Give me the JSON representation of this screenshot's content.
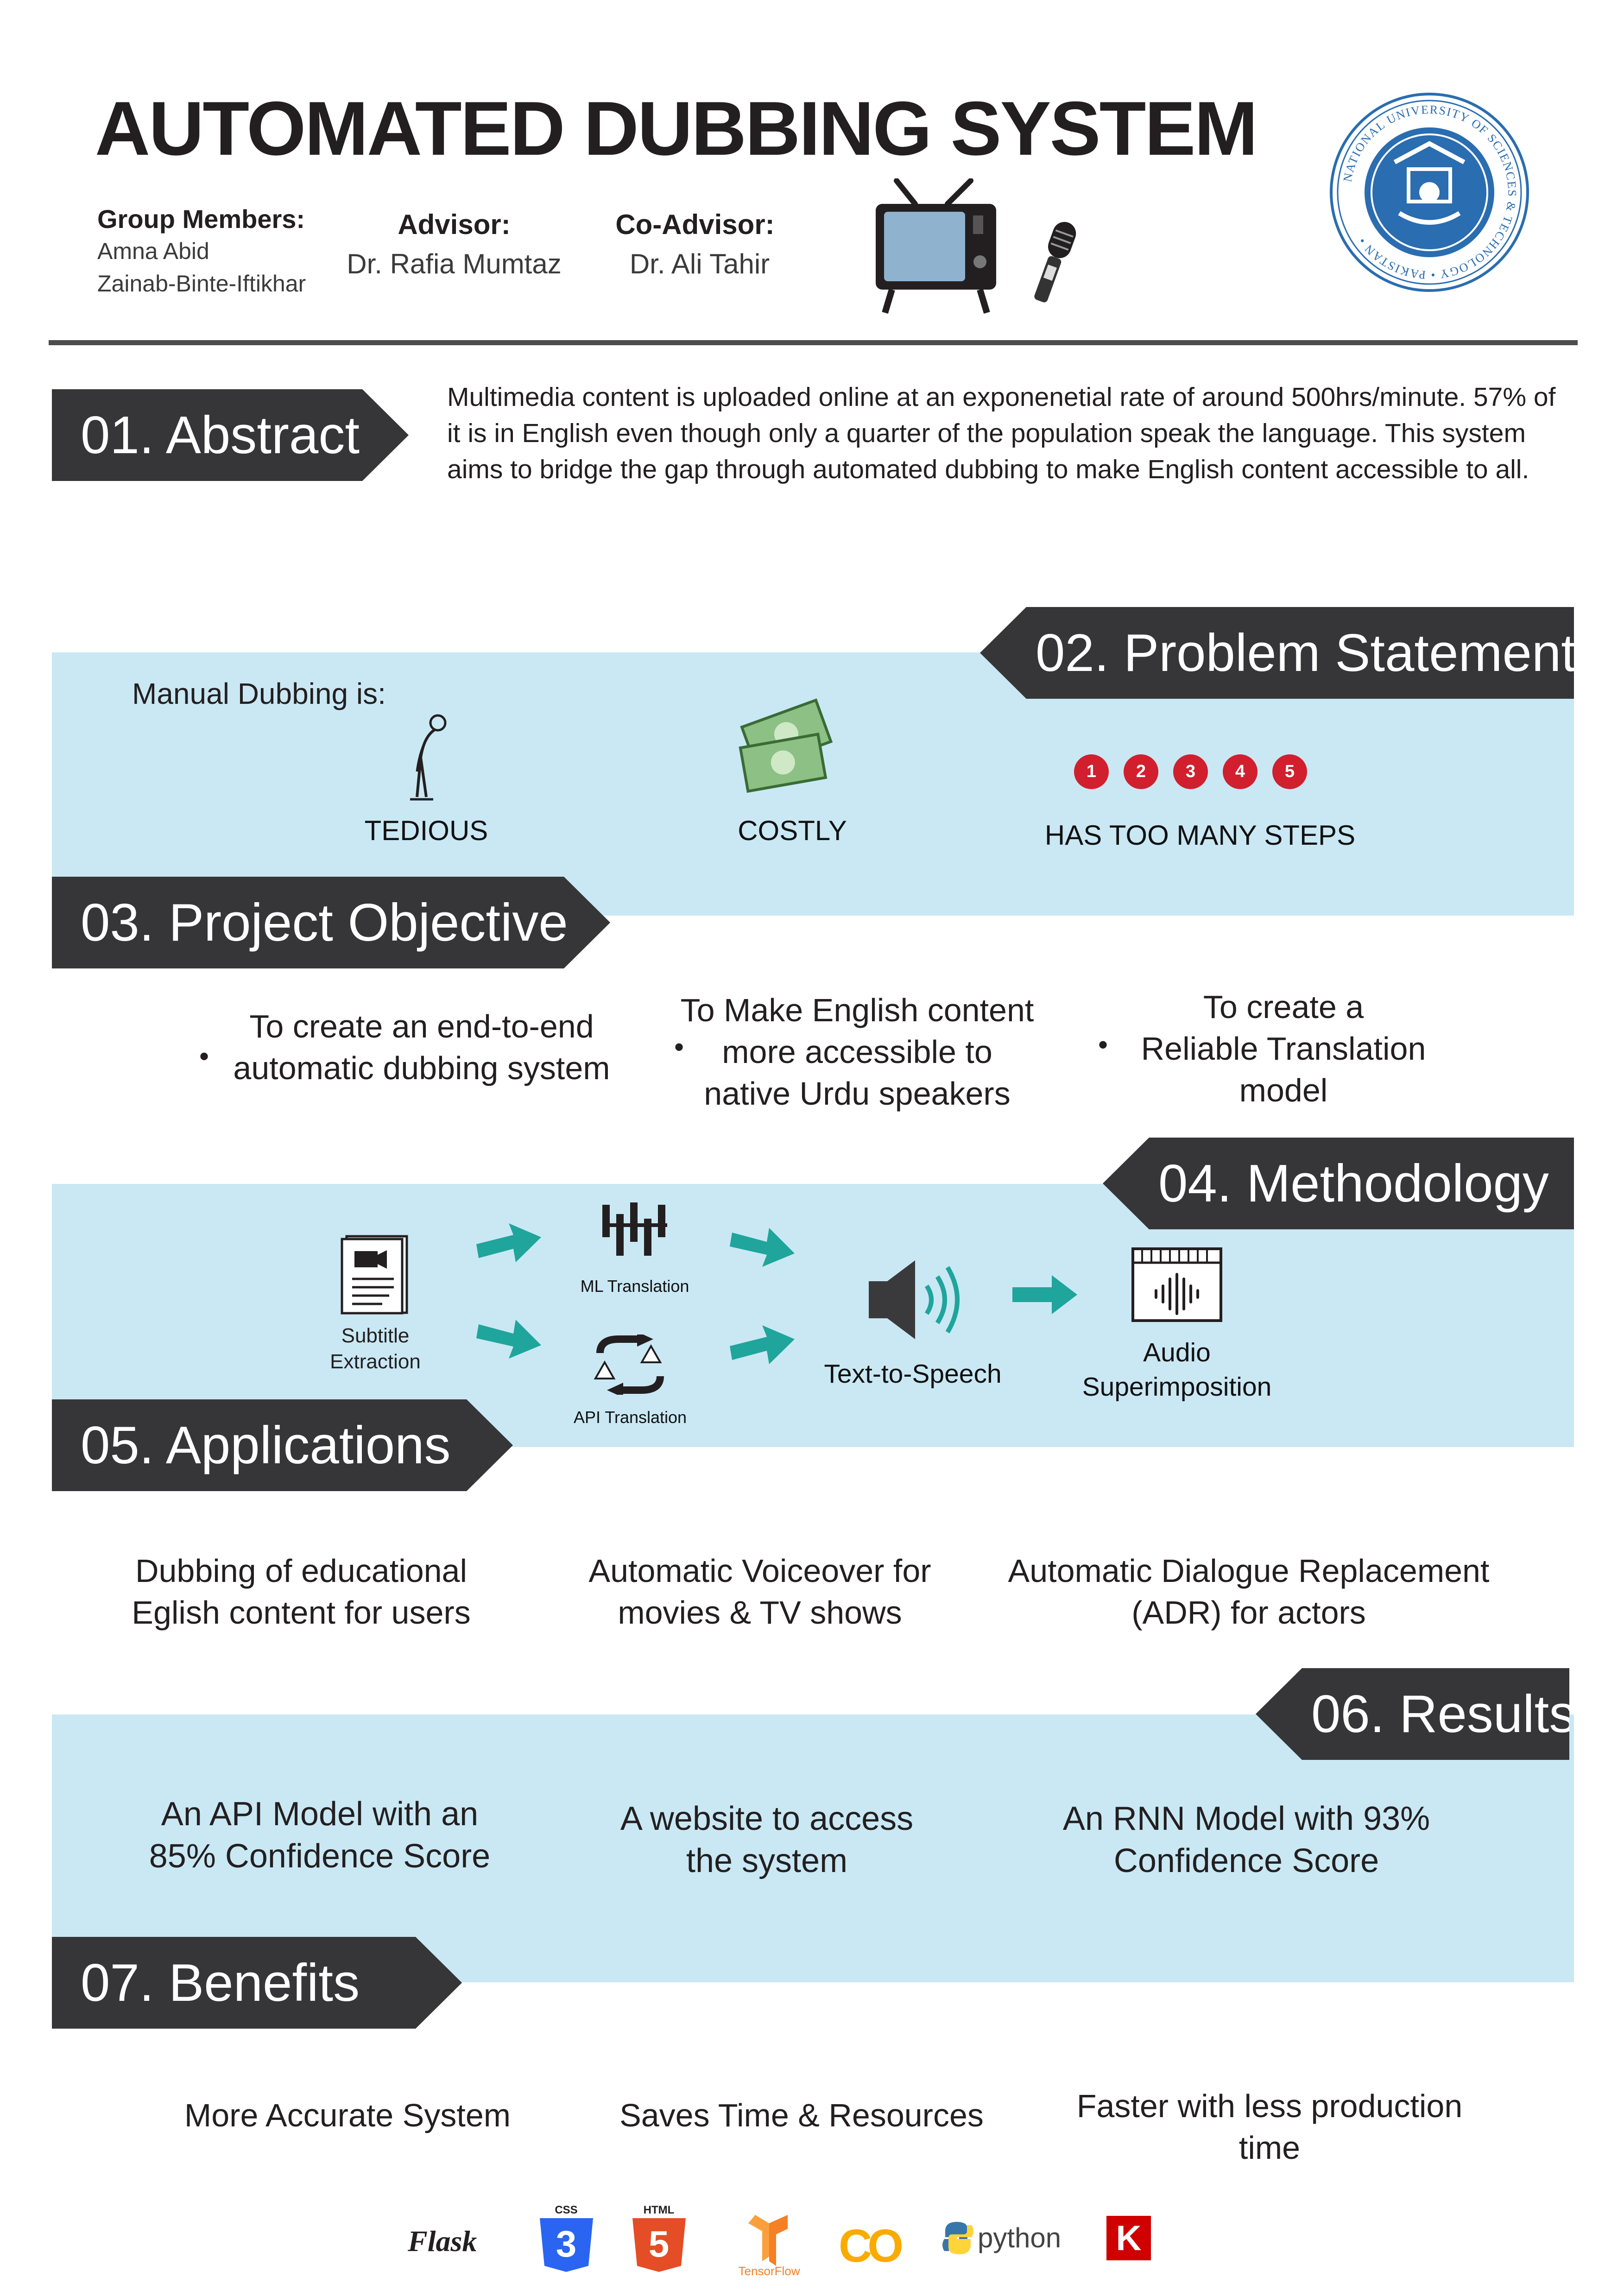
{
  "header": {
    "title": "AUTOMATED DUBBING SYSTEM",
    "group_members_label": "Group Members:",
    "members": [
      "Amna Abid",
      "Zainab-Binte-Iftikhar"
    ],
    "advisor_label": "Advisor:",
    "advisor": "Dr. Rafia Mumtaz",
    "coadvisor_label": "Co-Advisor:",
    "coadvisor": "Dr. Ali Tahir",
    "seal_text": "NATIONAL UNIVERSITY OF SCIENCES & TECHNOLOGY • PAKISTAN •"
  },
  "sections": {
    "abstract": {
      "label": "01. Abstract",
      "text": "Multimedia content is uploaded online at an exponenetial rate of around 500hrs/minute. 57% of it is in English even though only a quarter of the population speak the language. This system aims to bridge the gap through automated dubbing to make English content accessible to all."
    },
    "problem": {
      "label": "02. Problem Statement",
      "intro": "Manual Dubbing is:",
      "items": [
        {
          "label": "TEDIOUS",
          "icon": "tired-person-icon"
        },
        {
          "label": "COSTLY",
          "icon": "money-icon"
        },
        {
          "label": "HAS TOO MANY STEPS",
          "icon": "numbered-steps-icon"
        }
      ],
      "steps": [
        "1",
        "2",
        "3",
        "4",
        "5"
      ]
    },
    "objective": {
      "label": "03. Project Objective",
      "items": [
        {
          "line1": "To create an end-to-end",
          "line2": "automatic dubbing system",
          "line3": ""
        },
        {
          "line1": "To Make English content",
          "line2": "more accessible to",
          "line3": "native Urdu speakers"
        },
        {
          "line1": "To create a",
          "line2": "Reliable Translation",
          "line3": "model"
        }
      ],
      "bullet": "•"
    },
    "methodology": {
      "label": "04. Methodology",
      "subtitle_extraction": [
        "Subtitle",
        "Extraction"
      ],
      "ml_translation": "ML Translation",
      "api_translation": "API Translation",
      "tts": "Text-to-Speech",
      "audio": [
        "Audio",
        "Superimposition"
      ]
    },
    "applications": {
      "label": "05. Applications",
      "items": [
        [
          "Dubbing of educational",
          "Eglish content for users"
        ],
        [
          "Automatic Voiceover for",
          "movies & TV shows"
        ],
        [
          "Automatic Dialogue Replacement",
          "(ADR) for actors"
        ]
      ]
    },
    "results": {
      "label": "06. Results",
      "items": [
        [
          "An API Model with an",
          "85% Confidence Score"
        ],
        [
          "A website to access",
          "the system"
        ],
        [
          "An RNN Model with 93%",
          "Confidence Score"
        ]
      ]
    },
    "benefits": {
      "label": "07. Benefits",
      "items": [
        [
          "More Accurate System",
          ""
        ],
        [
          "Saves Time & Resources",
          ""
        ],
        [
          "Faster with less production",
          "time"
        ]
      ]
    }
  },
  "tech_logos": {
    "flask": "Flask",
    "css": "CSS",
    "html": "HTML",
    "tensorflow": "TensorFlow",
    "colab": "CO",
    "python": "python",
    "keras": "K"
  },
  "colors": {
    "band": "#c9e8f4",
    "tag": "#363638",
    "teal_arrow": "#1fa59b",
    "step_red": "#d11f2e",
    "seal_blue": "#2a6db0"
  }
}
